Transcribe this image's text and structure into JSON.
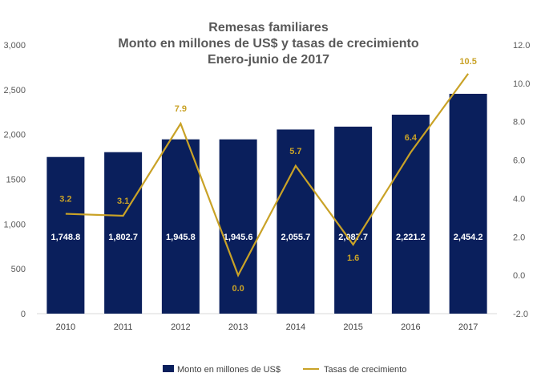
{
  "chart_data": {
    "type": "bar",
    "title_lines": [
      "Remesas familiares",
      "Monto en millones de US$ y tasas de crecimiento",
      "Enero-junio de 2017"
    ],
    "categories": [
      "2010",
      "2011",
      "2012",
      "2013",
      "2014",
      "2015",
      "2016",
      "2017"
    ],
    "series": [
      {
        "name": "Monto en millones de US$",
        "type": "bar",
        "axis": "left",
        "color": "#0a1f5c",
        "values": [
          1748.8,
          1802.7,
          1945.8,
          1945.6,
          2055.7,
          2087.7,
          2221.2,
          2454.2
        ],
        "labels": [
          "1,748.8",
          "1,802.7",
          "1,945.8",
          "1,945.6",
          "2,055.7",
          "2,087.7",
          "2,221.2",
          "2,454.2"
        ]
      },
      {
        "name": "Tasas de crecimiento",
        "type": "line",
        "axis": "right",
        "color": "#c9a227",
        "values": [
          3.2,
          3.1,
          7.9,
          0.0,
          5.7,
          1.6,
          6.4,
          10.5
        ],
        "labels": [
          "3.2",
          "3.1",
          "7.9",
          "0.0",
          "5.7",
          "1.6",
          "6.4",
          "10.5"
        ]
      }
    ],
    "y_left": {
      "range": [
        0,
        3000
      ],
      "ticks": [
        0,
        500,
        1000,
        1500,
        2000,
        2500,
        3000
      ],
      "tick_labels": [
        "0",
        "500",
        "1,000",
        "1500",
        "2,000",
        "2,500",
        "3,000"
      ]
    },
    "y_right": {
      "range": [
        -2,
        12
      ],
      "ticks": [
        -2,
        0,
        2,
        4,
        6,
        8,
        10,
        12
      ],
      "tick_labels": [
        "-2.0",
        "0.0",
        "2.0",
        "4.0",
        "6.0",
        "8.0",
        "10.0",
        "12.0"
      ]
    },
    "grid": false,
    "legend_position": "bottom"
  }
}
